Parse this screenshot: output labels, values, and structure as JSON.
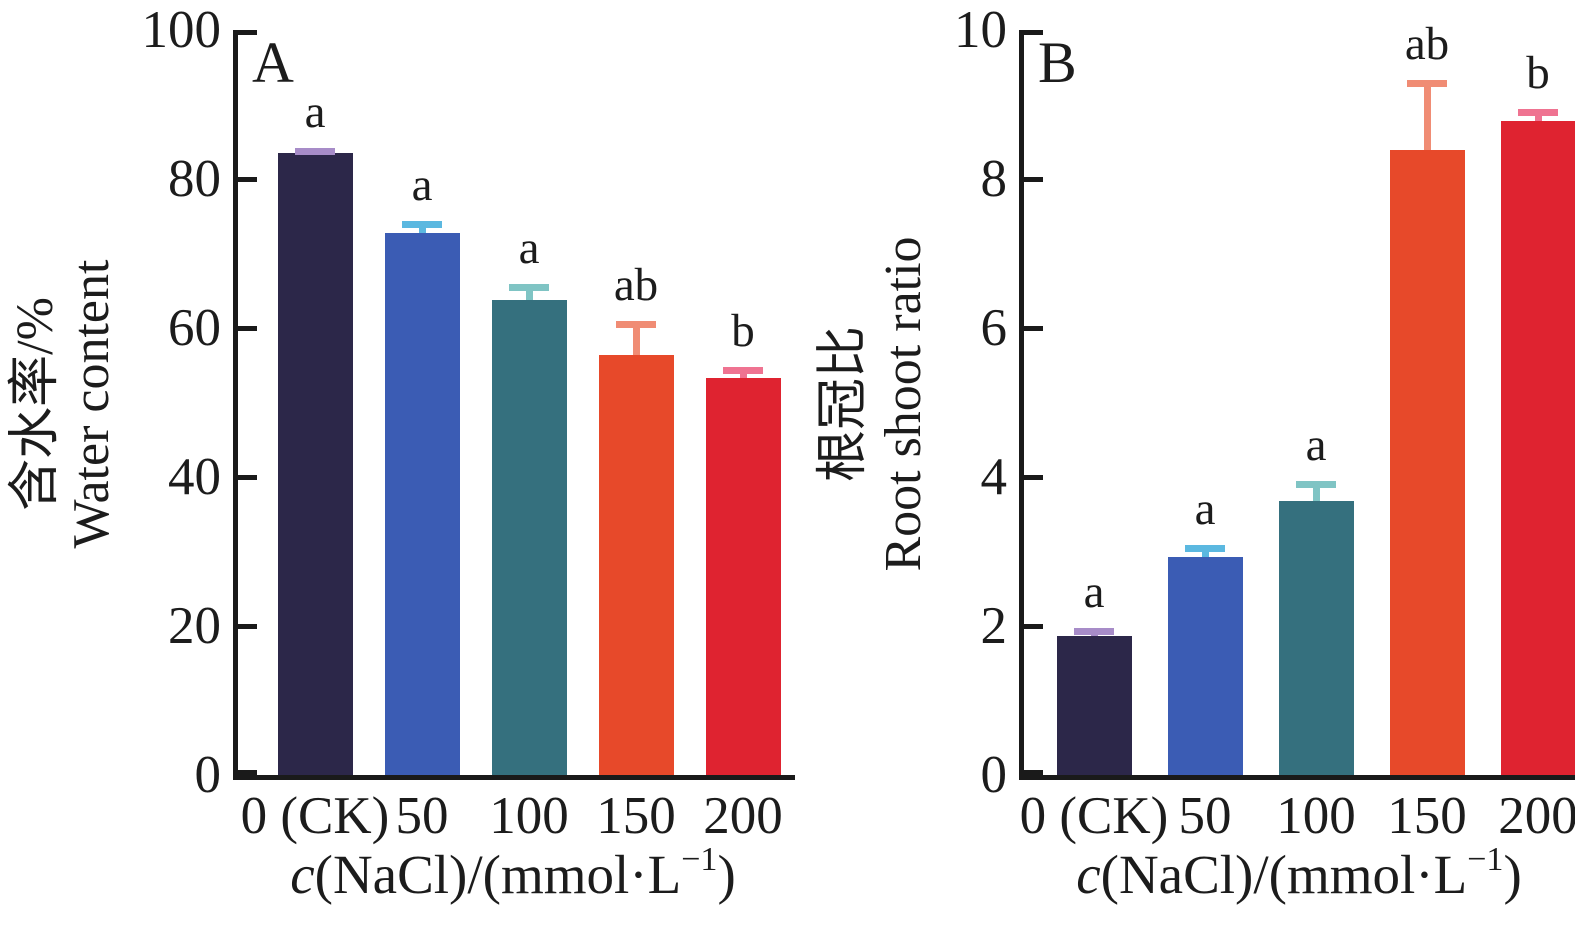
{
  "figure": {
    "background": "#ffffff",
    "axis_color": "#1a1a1a",
    "panels": [
      {
        "panel_label": "A",
        "ylabel_zh": "含水率/%",
        "ylabel_en": "Water content",
        "xtitle_var": "c",
        "xtitle_rest1": "(NaCl)/(mmol·L",
        "xtitle_sup": "−1",
        "xtitle_rest2": ")"
      },
      {
        "panel_label": "B",
        "ylabel_zh": "根冠比",
        "ylabel_en": "Root shoot ratio",
        "xtitle_var": "c",
        "xtitle_rest1": "(NaCl)/(mmol·L",
        "xtitle_sup": "−1",
        "xtitle_rest2": ")"
      }
    ]
  },
  "chart_data": [
    {
      "type": "bar",
      "panel": "A",
      "title": "",
      "categories": [
        "0 (CK)",
        "50",
        "100",
        "150",
        "200"
      ],
      "values": [
        83.5,
        72.8,
        63.7,
        56.4,
        53.3
      ],
      "error_plus": [
        0.6,
        1.5,
        2.2,
        4.6,
        1.5
      ],
      "sig_letters": [
        "a",
        "a",
        "a",
        "ab",
        "b"
      ],
      "bar_colors": [
        "#2c2749",
        "#3b5cb4",
        "#35707e",
        "#e7492a",
        "#df2330"
      ],
      "error_colors": [
        "#a78cc8",
        "#5bb8e0",
        "#7fc4c4",
        "#f08c74",
        "#ef7391"
      ],
      "xlabel": "c(NaCl)/(mmol·L⁻¹)",
      "ylabel": "含水率/% Water content",
      "ylim": [
        0,
        100
      ],
      "yticks": [
        0,
        20,
        40,
        60,
        80,
        100
      ],
      "grid": false,
      "legend": "none"
    },
    {
      "type": "bar",
      "panel": "B",
      "title": "",
      "categories": [
        "0 (CK)",
        "50",
        "100",
        "150",
        "200"
      ],
      "values": [
        1.87,
        2.92,
        3.68,
        8.39,
        8.78
      ],
      "error_plus": [
        0.11,
        0.17,
        0.27,
        0.94,
        0.16
      ],
      "sig_letters": [
        "a",
        "a",
        "a",
        "ab",
        "b"
      ],
      "bar_colors": [
        "#2c2749",
        "#3b5cb4",
        "#35707e",
        "#e7492a",
        "#df2330"
      ],
      "error_colors": [
        "#a78cc8",
        "#5bb8e0",
        "#7fc4c4",
        "#f08c74",
        "#ef7391"
      ],
      "xlabel": "c(NaCl)/(mmol·L⁻¹)",
      "ylabel": "根冠比 Root shoot ratio",
      "ylim": [
        0,
        10
      ],
      "yticks": [
        0,
        2,
        4,
        6,
        8,
        10
      ],
      "grid": false,
      "legend": "none"
    }
  ]
}
